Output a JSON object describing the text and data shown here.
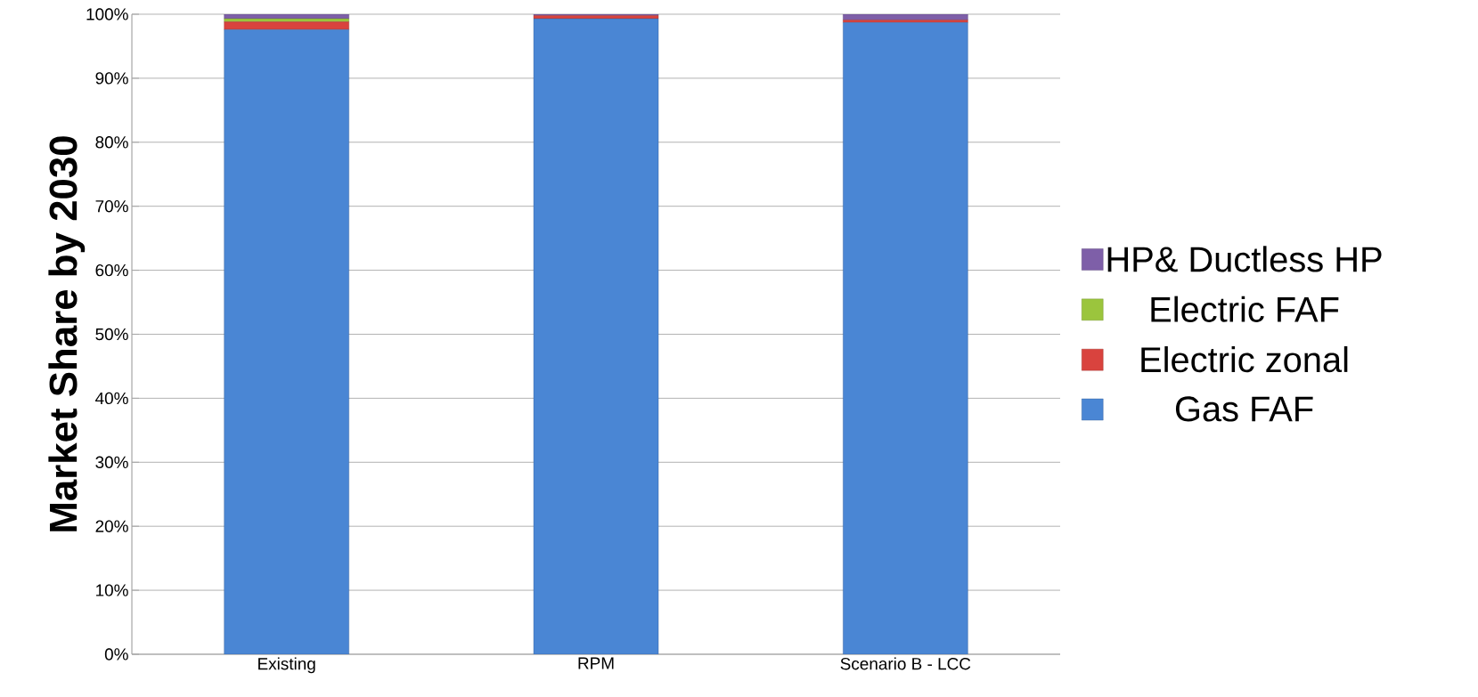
{
  "chart_data": {
    "type": "bar",
    "stacked": true,
    "ylabel": "Market Share by 2030",
    "categories": [
      "Existing",
      "RPM",
      "Scenario B - LCC"
    ],
    "series": [
      {
        "name": "Gas FAF",
        "color": "#4a86d4",
        "values": [
          97.6,
          99.3,
          98.7
        ]
      },
      {
        "name": "Electric zonal",
        "color": "#d9433e",
        "values": [
          1.2,
          0.5,
          0.4
        ]
      },
      {
        "name": "Electric FAF",
        "color": "#9bc53d",
        "values": [
          0.5,
          0,
          0
        ]
      },
      {
        "name": "HP& Ductless HP",
        "color": "#7e5fa8",
        "values": [
          0.7,
          0.2,
          0.9
        ]
      }
    ],
    "ylim": [
      0,
      100
    ],
    "yticks": [
      {
        "value": 0,
        "label": "0%"
      },
      {
        "value": 10,
        "label": "10%"
      },
      {
        "value": 20,
        "label": "20%"
      },
      {
        "value": 30,
        "label": "30%"
      },
      {
        "value": 40,
        "label": "40%"
      },
      {
        "value": 50,
        "label": "50%"
      },
      {
        "value": 60,
        "label": "60%"
      },
      {
        "value": 70,
        "label": "70%"
      },
      {
        "value": 80,
        "label": "80%"
      },
      {
        "value": 90,
        "label": "90%"
      },
      {
        "value": 100,
        "label": "100%"
      }
    ],
    "grid": "y",
    "legend": "right"
  }
}
